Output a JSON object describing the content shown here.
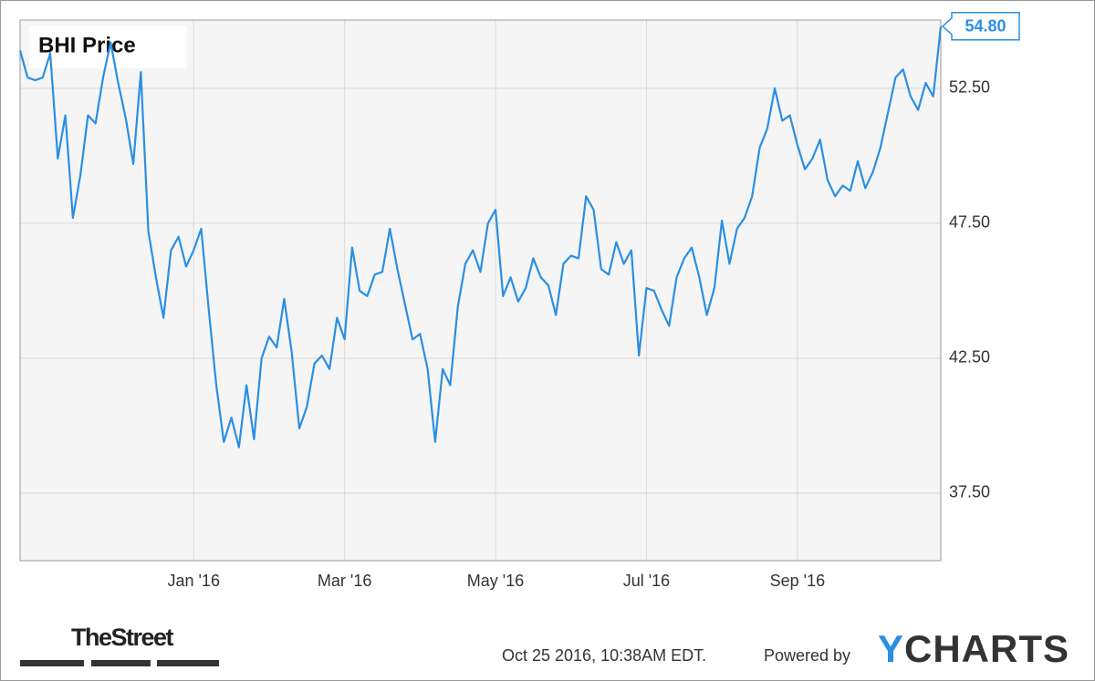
{
  "chart_data": {
    "type": "line",
    "title": "BHI Price",
    "categories": [
      null,
      null,
      null,
      null,
      null,
      null,
      null,
      null,
      null,
      null,
      null,
      null,
      null,
      null,
      null,
      null,
      null,
      null,
      null,
      null,
      null,
      null,
      null,
      "Jan '16",
      null,
      null,
      null,
      null,
      null,
      null,
      null,
      null,
      null,
      null,
      null,
      null,
      null,
      null,
      null,
      null,
      null,
      null,
      null,
      "Mar '16",
      null,
      null,
      null,
      null,
      null,
      null,
      null,
      null,
      null,
      null,
      null,
      null,
      null,
      null,
      null,
      null,
      null,
      null,
      null,
      "May '16",
      null,
      null,
      null,
      null,
      null,
      null,
      null,
      null,
      null,
      null,
      null,
      null,
      null,
      null,
      null,
      null,
      null,
      null,
      null,
      "Jul '16",
      null,
      null,
      null,
      null,
      null,
      null,
      null,
      null,
      null,
      null,
      null,
      null,
      null,
      null,
      null,
      null,
      null,
      null,
      null,
      "Sep '16",
      null,
      null,
      null,
      null,
      null,
      null,
      null,
      null,
      null,
      null,
      null,
      null,
      null,
      null,
      null,
      null,
      null,
      null,
      null
    ],
    "values": [
      53.9,
      52.9,
      52.8,
      52.9,
      53.8,
      49.9,
      51.5,
      47.7,
      49.3,
      51.5,
      51.2,
      52.9,
      54.2,
      52.7,
      51.4,
      49.7,
      53.1,
      47.2,
      45.5,
      44.0,
      46.5,
      47.0,
      45.9,
      46.5,
      47.3,
      44.3,
      41.5,
      39.4,
      40.3,
      39.2,
      41.5,
      39.5,
      42.5,
      43.3,
      42.9,
      44.7,
      42.7,
      39.9,
      40.7,
      42.3,
      42.6,
      42.1,
      44.0,
      43.2,
      46.6,
      45.0,
      44.8,
      45.6,
      45.7,
      47.3,
      45.8,
      44.5,
      43.2,
      43.4,
      42.1,
      39.4,
      42.1,
      41.5,
      44.4,
      46.0,
      46.5,
      45.7,
      47.5,
      48.0,
      44.8,
      45.5,
      44.6,
      45.1,
      46.2,
      45.5,
      45.2,
      44.1,
      46.0,
      46.3,
      46.2,
      48.5,
      48.0,
      45.8,
      45.6,
      46.8,
      46.0,
      46.5,
      42.6,
      45.1,
      45.0,
      44.3,
      43.7,
      45.5,
      46.2,
      46.6,
      45.5,
      44.1,
      45.1,
      47.6,
      46.0,
      47.3,
      47.7,
      48.5,
      50.3,
      51.0,
      52.5,
      51.3,
      51.5,
      50.4,
      49.5,
      49.9,
      50.6,
      49.1,
      48.5,
      48.9,
      48.7,
      49.8,
      48.8,
      49.4,
      50.3,
      51.6,
      52.9,
      53.2,
      52.2,
      51.7,
      52.7,
      52.2,
      54.8
    ],
    "value_labels": [
      null,
      null,
      null,
      null,
      null,
      null,
      null,
      null,
      null,
      null,
      null,
      null,
      null,
      null,
      null,
      null,
      null,
      null,
      null,
      null,
      null,
      null,
      null,
      null,
      null,
      null,
      null,
      null,
      null,
      null,
      null,
      null,
      null,
      null,
      null,
      null,
      null,
      null,
      null,
      null,
      null,
      null,
      null,
      null,
      null,
      null,
      null,
      null,
      null,
      null,
      null,
      null,
      null,
      null,
      null,
      null,
      null,
      null,
      null,
      null,
      null,
      null,
      null,
      null,
      null,
      null,
      null,
      null,
      null,
      null,
      null,
      null,
      null,
      null,
      null,
      null,
      null,
      null,
      null,
      null,
      null,
      null,
      null,
      null,
      null,
      null,
      null,
      null,
      null,
      null,
      null,
      null,
      null,
      null,
      null,
      null,
      null,
      null,
      null,
      null,
      null,
      null,
      null,
      null,
      null,
      null,
      null,
      null,
      null,
      null,
      null,
      null,
      null,
      null,
      null,
      null,
      null,
      null,
      null,
      null,
      null,
      null,
      "54.80"
    ],
    "color": "#2a8fe4",
    "ylim": [
      35.0,
      55.03
    ],
    "yticks": [
      {
        "value": 37.5,
        "label": "37.50"
      },
      {
        "value": 42.5,
        "label": "42.50"
      },
      {
        "value": 47.5,
        "label": "47.50"
      },
      {
        "value": 52.5,
        "label": "52.50"
      }
    ],
    "grid": true
  },
  "footer": {
    "logo": "TheStreet",
    "timestamp": "Oct 25 2016, 10:38AM EDT.",
    "powered_by": "Powered by",
    "brand": "YCHARTS"
  }
}
